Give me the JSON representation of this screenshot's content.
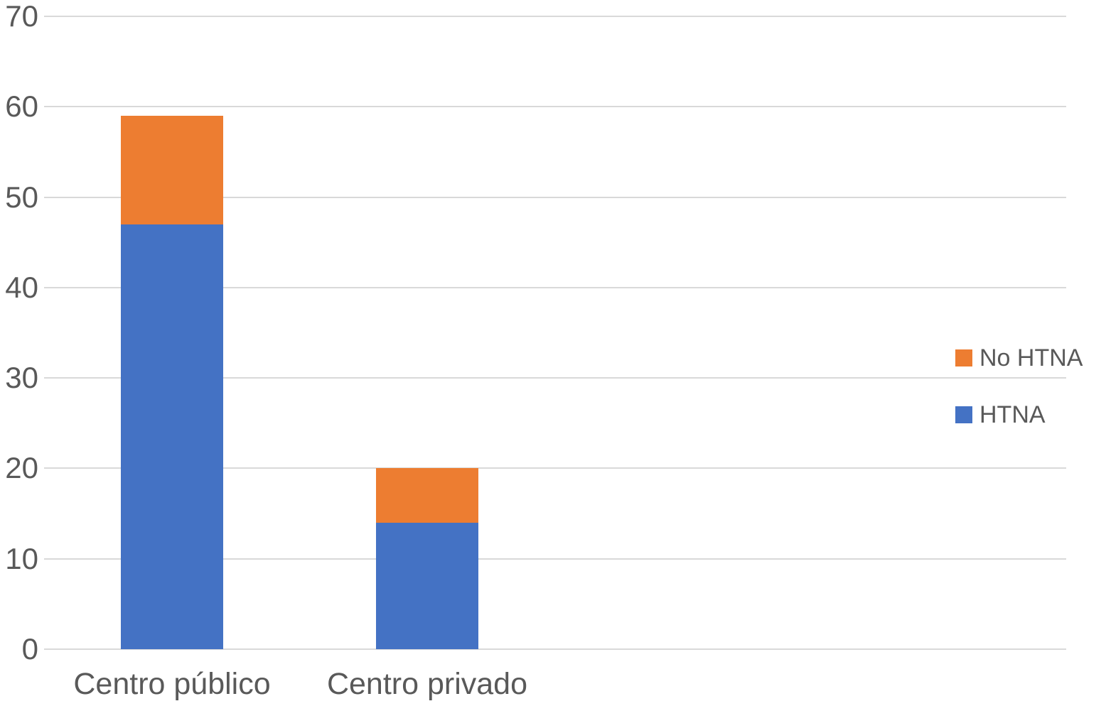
{
  "chart_data": {
    "type": "bar",
    "stacked": true,
    "orientation": "vertical",
    "title": "",
    "xlabel": "",
    "ylabel": "",
    "categories": [
      "Centro público",
      "Centro privado"
    ],
    "series": [
      {
        "name": "HTNA",
        "color": "#4472C4",
        "values": [
          47,
          14
        ]
      },
      {
        "name": "No HTNA",
        "color": "#ED7D31",
        "values": [
          12,
          6
        ]
      }
    ],
    "stack_totals": [
      59,
      20
    ],
    "ylim": [
      0,
      70
    ],
    "yticks": [
      0,
      10,
      20,
      30,
      40,
      50,
      60,
      70
    ],
    "grid": true,
    "gridline_color": "#D9D9D9",
    "text_color": "#595959",
    "background_color": "#FFFFFF",
    "legend": {
      "position": "right",
      "items": [
        {
          "label": "No HTNA",
          "color": "#ED7D31"
        },
        {
          "label": "HTNA",
          "color": "#4472C4"
        }
      ]
    }
  }
}
